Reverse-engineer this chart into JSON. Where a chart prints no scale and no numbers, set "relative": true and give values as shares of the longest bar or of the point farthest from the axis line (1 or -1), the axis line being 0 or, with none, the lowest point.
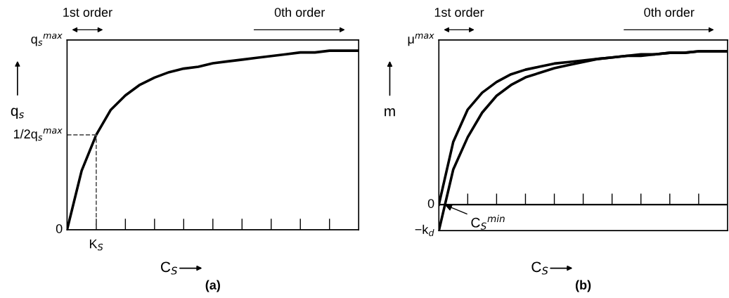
{
  "chart_data": [
    {
      "type": "line",
      "relative": true,
      "title": "(a)",
      "xlabel": "C$_{S}$",
      "ylabel": "q$_{s}$",
      "annotations": [
        "1st order",
        "0th order",
        "q$_{s}$$^{max}$",
        "1/2q$_{s}$$^{max}$",
        "0",
        "K$_{S}$"
      ],
      "categories": [
        null,
        null,
        null,
        null,
        null,
        null,
        null,
        null,
        null,
        null,
        null,
        null,
        null,
        null,
        null,
        null,
        null,
        null,
        null,
        null,
        null
      ],
      "series": [
        {
          "color": "#000000",
          "values": [
            0,
            0.33,
            0.53,
            0.67,
            0.75,
            0.81,
            0.85,
            0.88,
            0.9,
            0.91,
            0.93,
            0.94,
            0.95,
            0.96,
            0.97,
            0.98,
            0.99,
            0.99,
            1.0,
            1.0,
            1.0
          ]
        }
      ],
      "line_style": "solid",
      "marker": "none"
    },
    {
      "type": "line",
      "relative": true,
      "title": "(b)",
      "xlabel": "C$_{S}$",
      "ylabel": "m",
      "annotations": [
        "1st order",
        "0th order",
        "μ$^{max}$",
        "0",
        "−k$_{d}$",
        "C$_{S}$$^{min}$"
      ],
      "categories": [
        null,
        null,
        null,
        null,
        null,
        null,
        null,
        null,
        null,
        null,
        null,
        null,
        null,
        null,
        null,
        null,
        null,
        null,
        null,
        null,
        null
      ],
      "series": [
        {
          "color": "#000000",
          "values": [
            0,
            0.41,
            0.62,
            0.73,
            0.8,
            0.85,
            0.88,
            0.9,
            0.92,
            0.93,
            0.94,
            0.95,
            0.96,
            0.97,
            0.98,
            0.98,
            0.99,
            0.99,
            1.0,
            1.0,
            1.0
          ]
        },
        {
          "color": "#000000",
          "values": [
            -0.17,
            0.23,
            0.44,
            0.6,
            0.71,
            0.78,
            0.83,
            0.86,
            0.89,
            0.91,
            0.93,
            0.95,
            0.96,
            0.97,
            0.97,
            0.98,
            0.99,
            0.99,
            1.0,
            1.0,
            1.0
          ]
        }
      ],
      "line_style": "solid",
      "marker": "none"
    }
  ]
}
